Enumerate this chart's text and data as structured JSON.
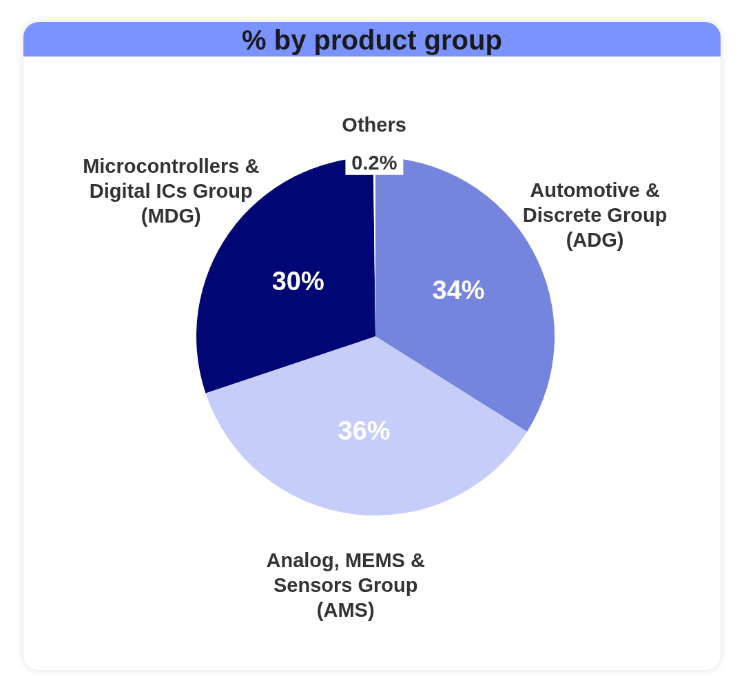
{
  "chart_data": {
    "type": "pie",
    "title": "% by product group",
    "categories": [
      "Automotive & Discrete Group (ADG)",
      "Analog, MEMS & Sensors Group (AMS)",
      "Microcontrollers & Digital ICs Group (MDG)",
      "Others"
    ],
    "values": [
      34,
      36,
      30,
      0.2
    ],
    "colors": [
      "#7585de",
      "#c5cdf8",
      "#000673",
      "#ffffff"
    ],
    "value_labels": [
      "34%",
      "36%",
      "30%",
      "0.2%"
    ]
  }
}
